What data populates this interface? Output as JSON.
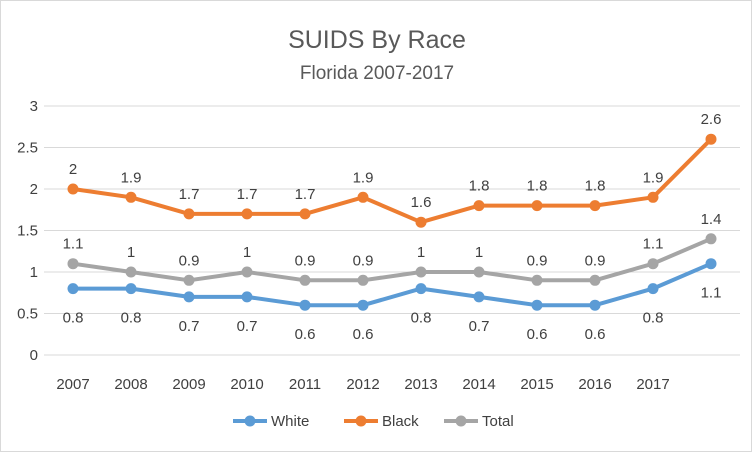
{
  "chart_data": {
    "type": "line",
    "title": "SUIDS By Race",
    "subtitle": "Florida 2007-2017",
    "xlabel": "",
    "ylabel": "",
    "categories": [
      "2007",
      "2008",
      "2009",
      "2010",
      "2011",
      "2012",
      "2013",
      "2014",
      "2015",
      "2016",
      "2017",
      ""
    ],
    "ylim": [
      0,
      3
    ],
    "yticks": [
      "0",
      "0.5",
      "1",
      "1.5",
      "2",
      "2.5",
      "3"
    ],
    "grid": true,
    "legend_position": "bottom",
    "series": [
      {
        "name": "White",
        "color": "#5b9bd5",
        "values": [
          0.8,
          0.8,
          0.7,
          0.7,
          0.6,
          0.6,
          0.8,
          0.7,
          0.6,
          0.6,
          0.8,
          1.1
        ],
        "labels": [
          "0.8",
          "0.8",
          "0.7",
          "0.7",
          "0.6",
          "0.6",
          "0.8",
          "0.7",
          "0.6",
          "0.6",
          "0.8",
          "1.1"
        ],
        "label_position": "below"
      },
      {
        "name": "Black",
        "color": "#ed7d31",
        "values": [
          2,
          1.9,
          1.7,
          1.7,
          1.7,
          1.9,
          1.6,
          1.8,
          1.8,
          1.8,
          1.9,
          2.6
        ],
        "labels": [
          "2",
          "1.9",
          "1.7",
          "1.7",
          "1.7",
          "1.9",
          "1.6",
          "1.8",
          "1.8",
          "1.8",
          "1.9",
          "2.6"
        ],
        "label_position": "above"
      },
      {
        "name": "Total",
        "color": "#a5a5a5",
        "values": [
          1.1,
          1,
          0.9,
          1,
          0.9,
          0.9,
          1,
          1,
          0.9,
          0.9,
          1.1,
          1.4
        ],
        "labels": [
          "1.1",
          "1",
          "0.9",
          "1",
          "0.9",
          "0.9",
          "1",
          "1",
          "0.9",
          "0.9",
          "1.1",
          "1.4"
        ],
        "label_position": "above"
      }
    ],
    "colors": {
      "grid": "#d9d9d9",
      "text": "#404040",
      "title": "#595959"
    }
  }
}
